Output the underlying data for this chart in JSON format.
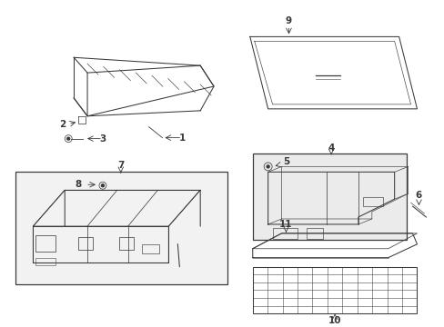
{
  "bg_color": "#ffffff",
  "line_color": "#3a3a3a",
  "fig_width": 4.89,
  "fig_height": 3.6,
  "dpi": 100,
  "label_fontsize": 7.5,
  "lw": 0.75
}
